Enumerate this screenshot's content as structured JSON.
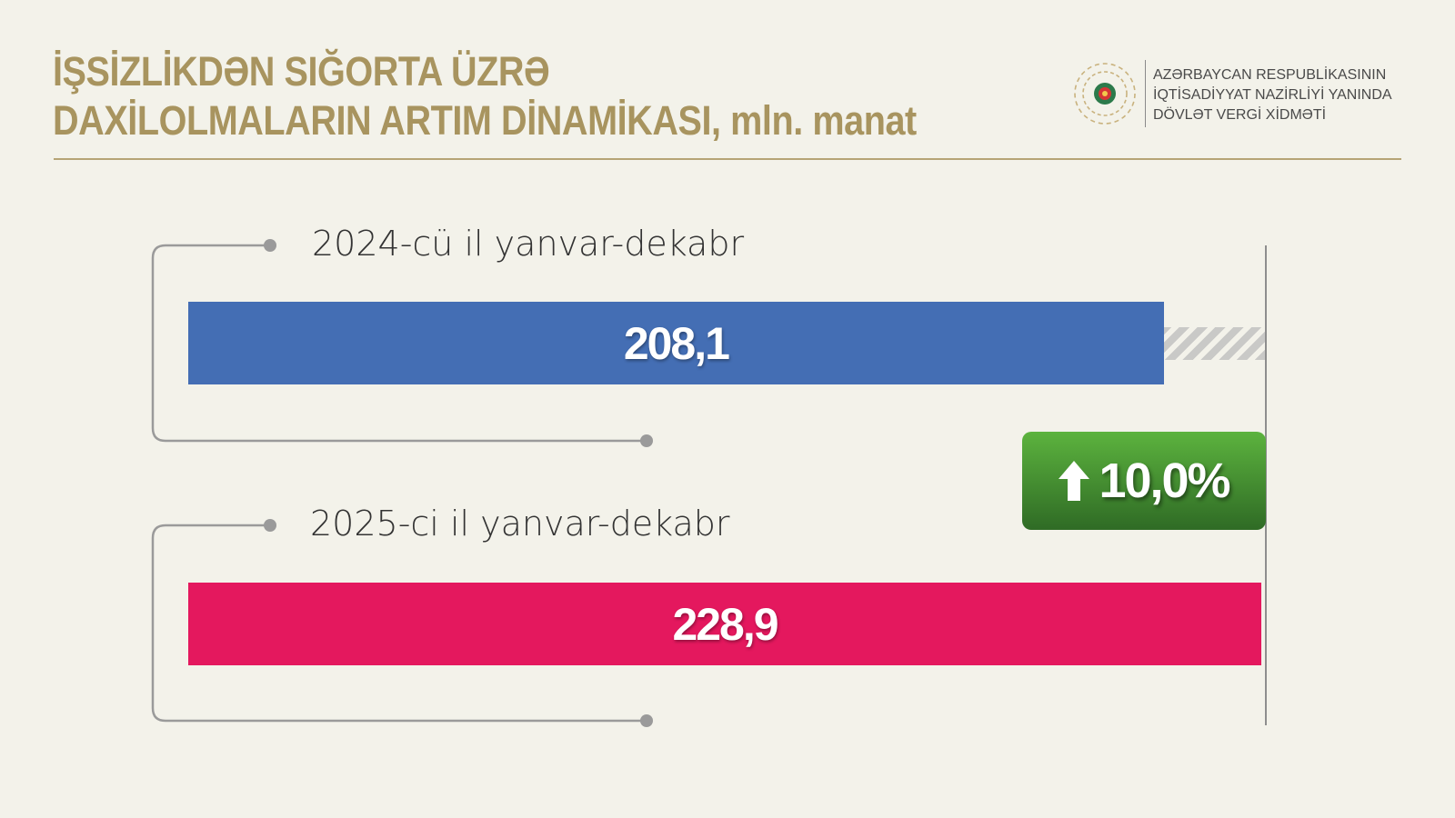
{
  "header": {
    "title_line1": "İŞSİZLİKDƏN SIĞORTA ÜZRƏ",
    "title_line2": "DAXİLOLMALARIN ARTIM DİNAMİKASI, mln. manat",
    "org_line1": "AZƏRBAYCAN RESPUBLİKASININ",
    "org_line2": "İQTİSADİYYAT NAZİRLİYİ YANINDA",
    "org_line3": "DÖVLƏT VERGİ XİDMƏTİ"
  },
  "chart_data": {
    "type": "bar",
    "orientation": "horizontal",
    "categories": [
      "2024-cü il yanvar-dekabr",
      "2025-ci il yanvar-dekabr"
    ],
    "values": [
      208.1,
      228.9
    ],
    "value_labels": [
      "208,1",
      "228,9"
    ],
    "colors": [
      "#446eb4",
      "#e4185e"
    ],
    "change": {
      "label": "10,0%",
      "direction": "up",
      "color": "#4a9a33"
    }
  }
}
